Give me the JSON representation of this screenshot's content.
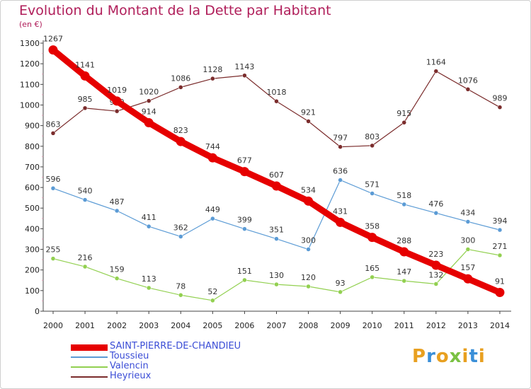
{
  "title": "Evolution du Montant de la Dette par Habitant",
  "unit": "(en €)",
  "brand": "Proxiti",
  "chart_data": {
    "type": "line",
    "title": "Evolution du Montant de la Dette par Habitant",
    "ylabel": "(en €)",
    "xlabel": "",
    "ylim": [
      0,
      1300
    ],
    "yticks": [
      0,
      100,
      200,
      300,
      400,
      500,
      600,
      700,
      800,
      900,
      1000,
      1100,
      1200,
      1300
    ],
    "grid": false,
    "legend": "bottom-left",
    "x": [
      "2000",
      "2001",
      "2002",
      "2003",
      "2004",
      "2005",
      "2006",
      "2007",
      "2008",
      "2009",
      "2010",
      "2011",
      "2012",
      "2013",
      "2014"
    ],
    "series": [
      {
        "name": "SAINT-PIERRE-DE-CHANDIEU",
        "color": "#e60000",
        "emphasis": true,
        "values": [
          1267,
          1141,
          1019,
          914,
          823,
          744,
          677,
          607,
          534,
          431,
          358,
          288,
          223,
          157,
          91
        ]
      },
      {
        "name": "Toussieu",
        "color": "#5b9bd5",
        "values": [
          596,
          540,
          487,
          411,
          362,
          449,
          399,
          351,
          300,
          636,
          571,
          518,
          476,
          434,
          394
        ]
      },
      {
        "name": "Valencin",
        "color": "#92d050",
        "values": [
          255,
          216,
          159,
          113,
          78,
          52,
          151,
          130,
          120,
          93,
          165,
          147,
          132,
          300,
          271
        ]
      },
      {
        "name": "Heyrieux",
        "color": "#7b2c2c",
        "values": [
          863,
          985,
          970,
          1020,
          1086,
          1128,
          1143,
          1018,
          921,
          797,
          803,
          915,
          1164,
          1076,
          989
        ]
      }
    ]
  }
}
